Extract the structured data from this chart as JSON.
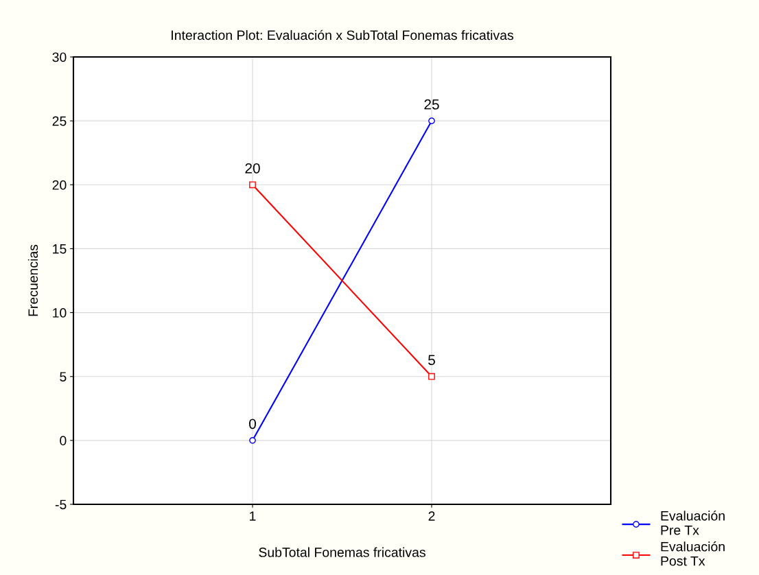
{
  "chart_data": {
    "type": "line",
    "title": "Interaction Plot: Evaluación x SubTotal Fonemas fricativas",
    "xlabel": "SubTotal Fonemas fricativas",
    "ylabel": "Frecuencias",
    "x": [
      1,
      2
    ],
    "xlim": [
      0,
      3
    ],
    "xticks": [
      1,
      2
    ],
    "ylim": [
      -5,
      30
    ],
    "yticks": [
      -5,
      0,
      5,
      10,
      15,
      20,
      25,
      30
    ],
    "series": [
      {
        "name": "Evaluación\nPre Tx",
        "color": "#0000ff",
        "values": [
          0,
          25
        ],
        "marker": "circle"
      },
      {
        "name": "Evaluación\nPost Tx",
        "color": "#ff0000",
        "values": [
          20,
          5
        ],
        "marker": "square"
      }
    ],
    "data_labels": true,
    "grid": true,
    "legend": "bottom right",
    "line_style": "solid"
  }
}
